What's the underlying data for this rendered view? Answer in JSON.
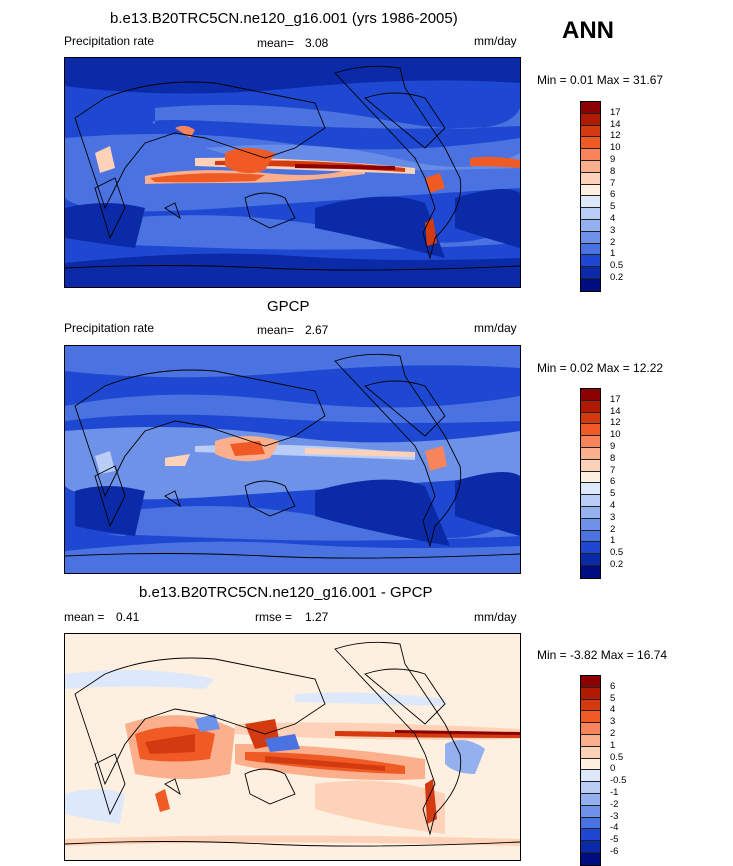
{
  "panel1": {
    "title": "b.e13.B20TRC5CN.ne120_g16.001 (yrs 1986-2005)",
    "left_label": "Precipitation rate",
    "mean_label": "mean=",
    "mean_value": "3.08",
    "units": "mm/day",
    "minmax": "Min =   0.01 Max =  31.67"
  },
  "season": "ANN",
  "panel2": {
    "title": "GPCP",
    "left_label": "Precipitation rate",
    "mean_label": "mean=",
    "mean_value": "2.67",
    "units": "mm/day",
    "minmax": "Min =   0.02 Max =  12.22"
  },
  "panel3": {
    "title": "b.e13.B20TRC5CN.ne120_g16.001 - GPCP",
    "mean_label": "mean =",
    "mean_value": "0.41",
    "rmse_label": "rmse =",
    "rmse_value": "1.27",
    "units": "mm/day",
    "minmax": "Min =  -3.82 Max =  16.74"
  },
  "colorbar_abs": {
    "levels": [
      "17",
      "14",
      "12",
      "10",
      "9",
      "8",
      "7",
      "6",
      "5",
      "4",
      "3",
      "2",
      "1",
      "0.5",
      "0.2"
    ],
    "colors": [
      "#8b0000",
      "#b01a00",
      "#d33a10",
      "#ef5a25",
      "#f7845a",
      "#fbaf8c",
      "#fdd2b8",
      "#fef0e0",
      "#dde9fb",
      "#b9cdf6",
      "#94b0ef",
      "#6e92e8",
      "#4a72e0",
      "#1f48d2",
      "#0a2aa8",
      "#000d80"
    ]
  },
  "colorbar_diff": {
    "levels": [
      "6",
      "5",
      "4",
      "3",
      "2",
      "1",
      "0.5",
      "0",
      "-0.5",
      "-1",
      "-2",
      "-3",
      "-4",
      "-5",
      "-6"
    ],
    "colors": [
      "#8b0000",
      "#b01a00",
      "#d33a10",
      "#ef5a25",
      "#f7845a",
      "#fbaf8c",
      "#fdd2b8",
      "#fef0e0",
      "#dde9fb",
      "#b9cdf6",
      "#94b0ef",
      "#6e92e8",
      "#4a72e0",
      "#1f48d2",
      "#0a2aa8",
      "#000d80"
    ]
  }
}
